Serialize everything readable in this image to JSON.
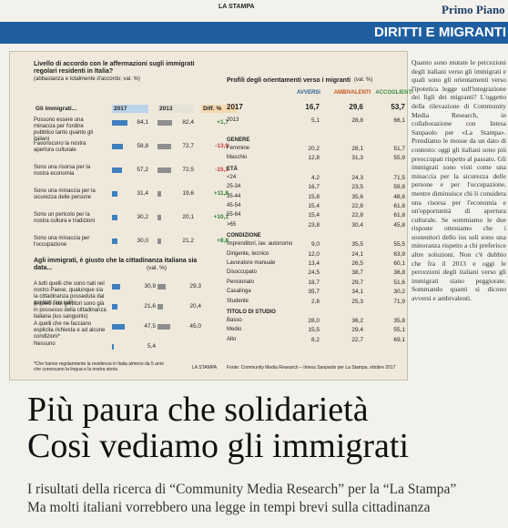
{
  "header": {
    "paper": "LA STAMPA",
    "section": "Primo Piano",
    "band": "DIRITTI E MIGRANTI"
  },
  "agreement": {
    "title": "Livello di accordo con le affermazioni sugli immigrati regolari residenti in Italia?",
    "subtitle": "(abbastanza e totalmente d'accordo; val. %)",
    "columns": [
      "Gli immigrati...",
      "2017",
      "2013",
      "Diff. %"
    ],
    "rows": [
      {
        "label": "Possono essere una minaccia per l'ordine pubblico tanto quanto gli italiani",
        "values": [
          84.1,
          82.4
        ],
        "value_labels": [
          "84,1",
          "82,4"
        ],
        "diff": "+1,7"
      },
      {
        "label": "Favoriscono la nostra apertura culturale",
        "values": [
          58.8,
          72.7
        ],
        "value_labels": [
          "58,8",
          "72,7"
        ],
        "diff": "-13,9"
      },
      {
        "label": "Sono una risorsa per la nostra economia",
        "values": [
          57.2,
          72.5
        ],
        "value_labels": [
          "57,2",
          "72,5"
        ],
        "diff": "-15,3"
      },
      {
        "label": "Sono una minaccia per la sicurezza delle persone",
        "values": [
          31.4,
          19.6
        ],
        "value_labels": [
          "31,4",
          "19,6"
        ],
        "diff": "+11,8"
      },
      {
        "label": "Sono un pericolo per la nostra cultura e tradizioni",
        "values": [
          30.2,
          20.1
        ],
        "value_labels": [
          "30,2",
          "20,1"
        ],
        "diff": "+10,1"
      },
      {
        "label": "Sono una minaccia per l'occupazione",
        "values": [
          30.0,
          21.2
        ],
        "value_labels": [
          "30,0",
          "21,2"
        ],
        "diff": "+8,8"
      }
    ]
  },
  "citizenship": {
    "title": "Agli immigrati, è giusto che la cittadinanza italiana sia data...",
    "unit": "(val. %)",
    "rows": [
      {
        "label": "A tutti quelli che sono nati nel nostro Paese, qualunque sia la cittadinanza posseduta dai genitori (ius soli)",
        "values": [
          30.9,
          29.3
        ],
        "value_labels": [
          "30,9",
          "29,3"
        ]
      },
      {
        "label": "A quelli i cui genitori sono già in possesso della cittadinanza italiana (ius sanguinis)",
        "values": [
          21.6,
          20.4
        ],
        "value_labels": [
          "21,6",
          "20,4"
        ]
      },
      {
        "label": "A quelli che ne facciano esplicita richiesta e ad alcune condizioni*",
        "values": [
          47.5,
          45.0
        ],
        "value_labels": [
          "47,5",
          "45,0"
        ]
      },
      {
        "label": "Nessuno",
        "values": [
          5.4
        ],
        "value_labels": [
          "5,4"
        ]
      }
    ],
    "note": "*Che hanno regolarmente la residenza in Italia almeno da 5 anni che conoscano la lingua e la nostra storia",
    "credit": "LA STAMPA"
  },
  "profiles": {
    "title": "Profili degli orientamenti verso i migranti",
    "unit": "(val. %)",
    "columns": [
      "AVVERSI",
      "AMBIVALENTI",
      "ACCOGLIENTI"
    ],
    "years": [
      [
        "2017",
        "16,7",
        "29,6",
        "53,7"
      ],
      [
        "2013",
        "5,1",
        "28,8",
        "66,1"
      ]
    ],
    "groups": [
      {
        "name": "GENERE",
        "rows": [
          [
            "Femmine",
            "20,2",
            "28,1",
            "51,7"
          ],
          [
            "Maschio",
            "12,8",
            "31,3",
            "55,9"
          ]
        ]
      },
      {
        "name": "ETÀ",
        "rows": [
          [
            "<24",
            "4,2",
            "24,3",
            "71,5"
          ],
          [
            "25-34",
            "16,7",
            "23,5",
            "59,8"
          ],
          [
            "35-44",
            "15,8",
            "35,6",
            "48,6"
          ],
          [
            "45-54",
            "15,4",
            "22,8",
            "61,8"
          ],
          [
            "55-64",
            "15,4",
            "22,8",
            "61,8"
          ],
          [
            ">65",
            "23,8",
            "30,4",
            "45,8"
          ]
        ]
      },
      {
        "name": "CONDIZIONE",
        "rows": [
          [
            "Imprenditori, lav. autonomo",
            "9,0",
            "35,5",
            "55,5"
          ],
          [
            "Dirigente, tecnico",
            "12,0",
            "24,1",
            "63,9"
          ],
          [
            "Lavoratore manuale",
            "13,4",
            "26,5",
            "60,1"
          ],
          [
            "Disoccupato",
            "24,5",
            "38,7",
            "36,8"
          ],
          [
            "Pensionato",
            "18,7",
            "29,7",
            "51,6"
          ],
          [
            "Casalinga",
            "35,7",
            "34,1",
            "30,2"
          ],
          [
            "Studente",
            "2,8",
            "25,3",
            "71,9"
          ]
        ]
      },
      {
        "name": "TITOLO DI STUDIO",
        "rows": [
          [
            "Basso",
            "28,0",
            "36,2",
            "35,8"
          ],
          [
            "Medio",
            "15,5",
            "29,4",
            "55,1"
          ],
          [
            "Alto",
            "8,2",
            "22,7",
            "69,1"
          ]
        ]
      }
    ],
    "source": "Fonte: Community Media Research – Intesa Sanpaolo per La Stampa, ottobre 2017"
  },
  "headline": [
    "Più paura che solidarietà",
    "Così vediamo gli immigrati"
  ],
  "subheads": [
    "I risultati della ricerca di “Community Media Research” per la “La Stampa”",
    "Ma molti italiani vorrebbero una legge in tempi brevi sulla cittadinanza"
  ],
  "column_text": "Quanto sono mutate le percezioni degli italiani verso gli immigrati e quali sono gli orientamenti verso l'ipotetica legge sull'integrazione dei figli dei migranti? L'oggetto della rilevazione di Community Media Research, in collaborazione con Intesa Sanpaolo per «La Stampa». Prendiamo le mosse da un dato di contesto: oggi gli italiani sono più preoccupati rispetto al passato. Gli immigrati sono visti come una minaccia per la sicurezza delle persone e per l'occupazione, mentre diminuisce chi li considera una risorsa per l'economia e un'opportunità di apertura culturale. Se sommiamo le due risposte otteniamo che i sostenitori dello ius soli sono una minoranza rispetto a chi preferisce altre soluzioni. Non c'è dubbio che fra il 2013 e oggi le percezioni degli italiani verso gli immigrati siano peggiorate. Sommando quanti si dicono avversi e ambivalenti."
}
